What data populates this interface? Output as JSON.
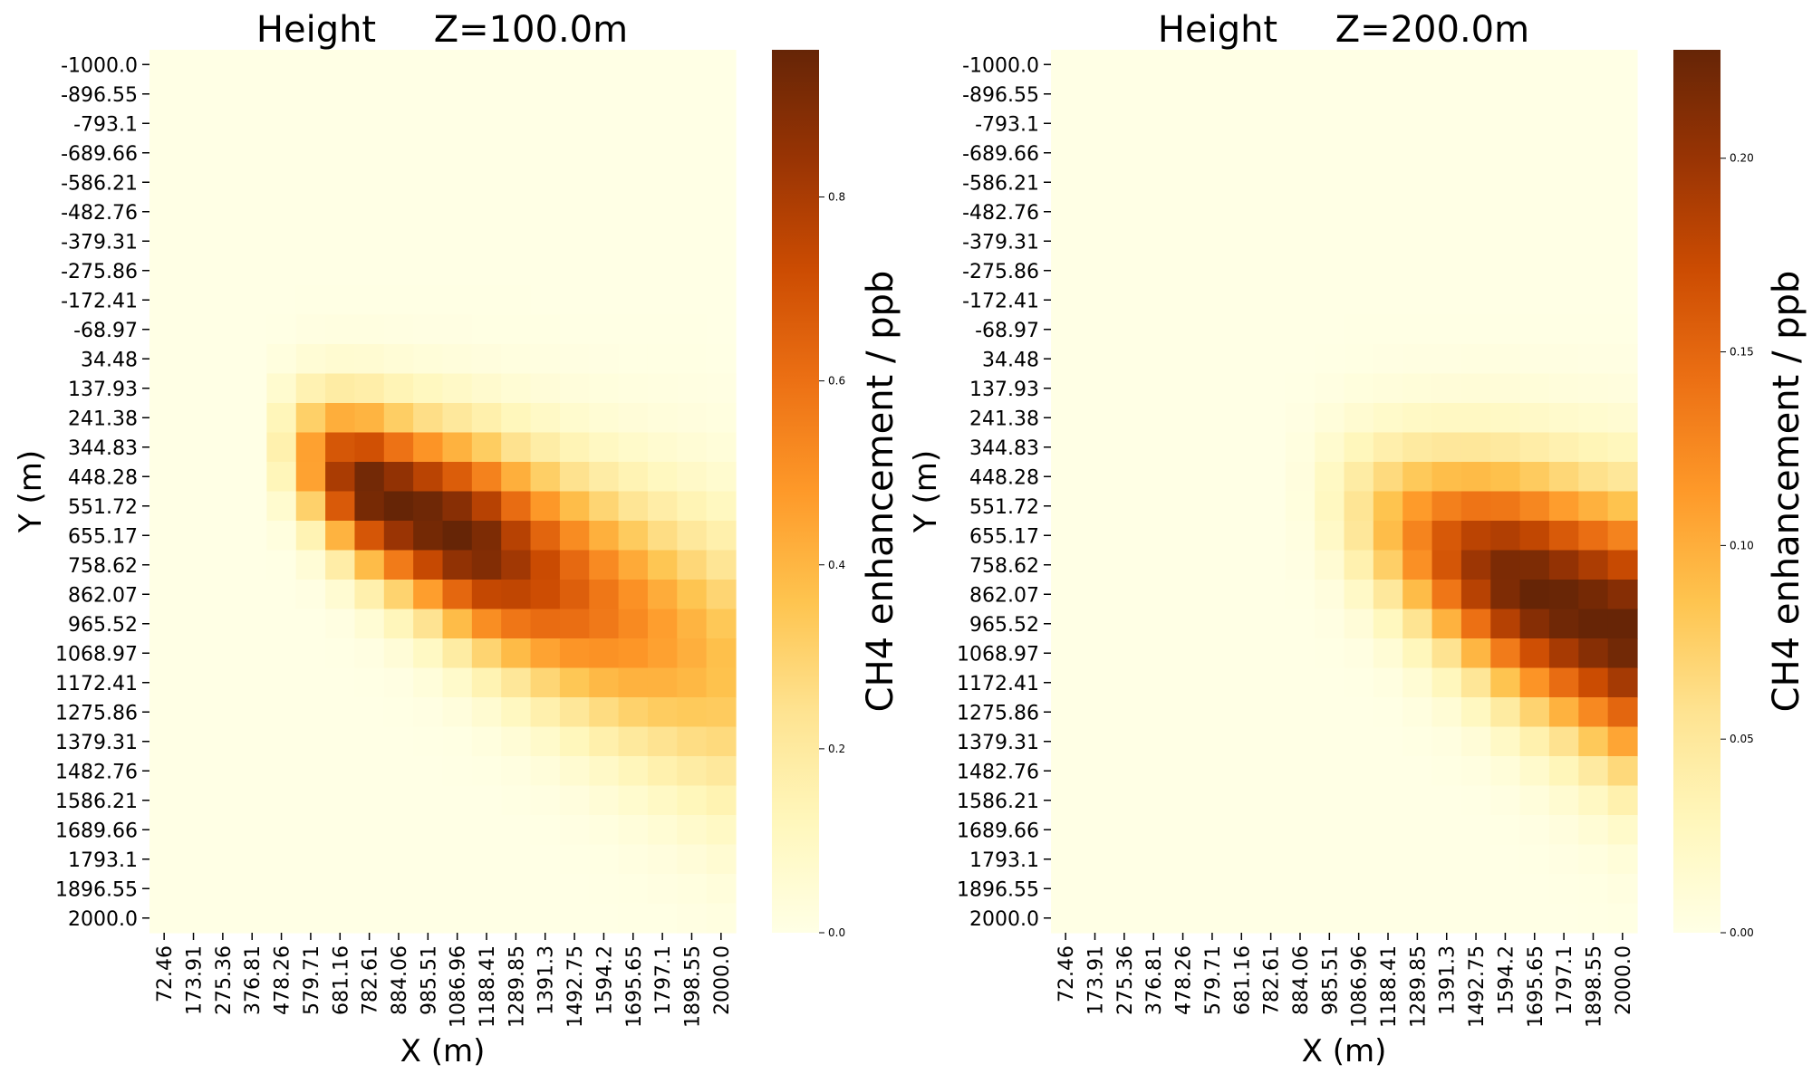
{
  "chart_data": [
    {
      "type": "heatmap",
      "title": "Height     Z=100.0m",
      "xlabel": "X (m)",
      "ylabel": "Y (m)",
      "colorbar_label": "CH4 enhancement / ppb",
      "colormap": "YlOrBr",
      "color_stops": [
        "#ffffe5",
        "#fff7bc",
        "#fee391",
        "#fec44f",
        "#fe9929",
        "#ec7014",
        "#cc4c02",
        "#993404",
        "#662506"
      ],
      "vmin": 0.0,
      "vmax": 0.96,
      "colorbar_ticks": [
        "0.0",
        "0.2",
        "0.4",
        "0.6",
        "0.8"
      ],
      "x_tick_labels": [
        "72.46",
        "173.91",
        "275.36",
        "376.81",
        "478.26",
        "579.71",
        "681.16",
        "782.61",
        "884.06",
        "985.51",
        "1086.96",
        "1188.41",
        "1289.85",
        "1391.3",
        "1492.75",
        "1594.2",
        "1695.65",
        "1797.1",
        "1898.55",
        "2000.0"
      ],
      "y_tick_labels": [
        "-1000.0",
        "-896.55",
        "-793.1",
        "-689.66",
        "-586.21",
        "-482.76",
        "-379.31",
        "-275.86",
        "-172.41",
        "-68.97",
        "34.48",
        "137.93",
        "241.38",
        "344.83",
        "448.28",
        "551.72",
        "655.17",
        "758.62",
        "862.07",
        "965.52",
        "1068.97",
        "1172.41",
        "1275.86",
        "1379.31",
        "1482.76",
        "1586.21",
        "1689.66",
        "1793.1",
        "1896.55",
        "2000.0"
      ],
      "plume": {
        "y_center_start": 290,
        "y_center_slope": 0.5,
        "sigma_y_base": 140,
        "sigma_y_slope": 0.13,
        "x_source": 370,
        "x_peak": 1150,
        "x_ramp": 420,
        "decay_length": 900
      }
    },
    {
      "type": "heatmap",
      "title": "Height     Z=200.0m",
      "xlabel": "X (m)",
      "ylabel": "Y (m)",
      "colorbar_label": "CH4 enhancement / ppb",
      "colormap": "YlOrBr",
      "color_stops": [
        "#ffffe5",
        "#fff7bc",
        "#fee391",
        "#fec44f",
        "#fe9929",
        "#ec7014",
        "#cc4c02",
        "#993404",
        "#662506"
      ],
      "vmin": 0.0,
      "vmax": 0.228,
      "colorbar_ticks": [
        "0.00",
        "0.05",
        "0.10",
        "0.15",
        "0.20"
      ],
      "x_tick_labels": [
        "72.46",
        "173.91",
        "275.36",
        "376.81",
        "478.26",
        "579.71",
        "681.16",
        "782.61",
        "884.06",
        "985.51",
        "1086.96",
        "1188.41",
        "1289.85",
        "1391.3",
        "1492.75",
        "1594.2",
        "1695.65",
        "1797.1",
        "1898.55",
        "2000.0"
      ],
      "y_tick_labels": [
        "-1000.0",
        "-896.55",
        "-793.1",
        "-689.66",
        "-586.21",
        "-482.76",
        "-379.31",
        "-275.86",
        "-172.41",
        "-68.97",
        "34.48",
        "137.93",
        "241.38",
        "344.83",
        "448.28",
        "551.72",
        "655.17",
        "758.62",
        "862.07",
        "965.52",
        "1068.97",
        "1172.41",
        "1275.86",
        "1379.31",
        "1482.76",
        "1586.21",
        "1689.66",
        "1793.1",
        "1896.55",
        "2000.0"
      ],
      "plume": {
        "y_center_start": 450,
        "y_center_slope": 0.45,
        "sigma_y_base": 170,
        "sigma_y_slope": 0.12,
        "x_source": 800,
        "x_peak": 2000,
        "x_ramp": 900,
        "decay_length": 100000
      }
    }
  ]
}
